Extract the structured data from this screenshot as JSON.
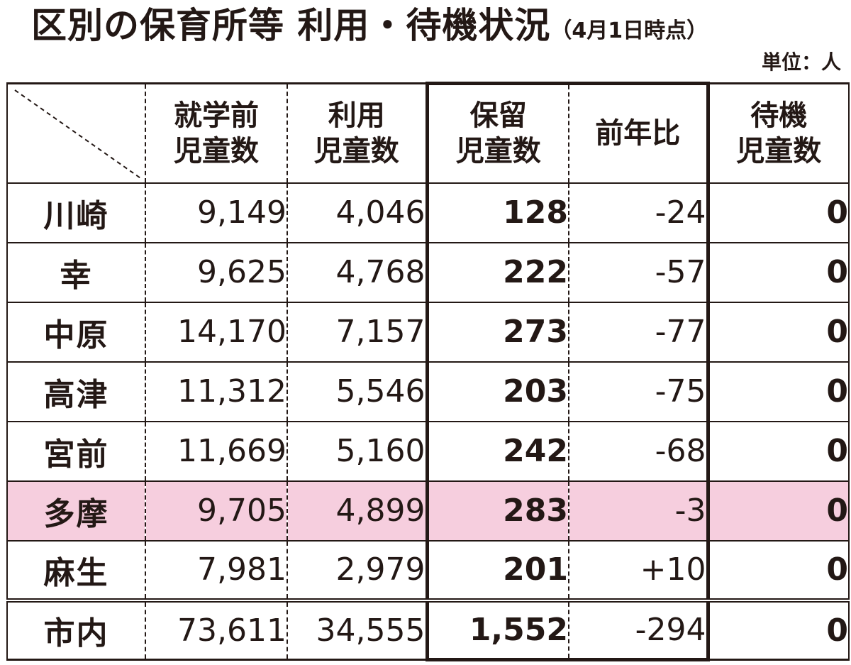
{
  "title": {
    "main": "区別の保育所等 利用・待機状況",
    "sub": "（4月1日時点）"
  },
  "unit": "単位：人",
  "headers": {
    "preschool": [
      "就学前",
      "児童数"
    ],
    "usage": [
      "利用",
      "児童数"
    ],
    "hold": [
      "保留",
      "児童数"
    ],
    "yoy": [
      "前年比"
    ],
    "waiting": [
      "待機",
      "児童数"
    ]
  },
  "rows": [
    {
      "ward": "川崎",
      "preschool": "9,149",
      "usage": "4,046",
      "hold": "128",
      "yoy": "-24",
      "waiting": "0"
    },
    {
      "ward": "幸",
      "preschool": "9,625",
      "usage": "4,768",
      "hold": "222",
      "yoy": "-57",
      "waiting": "0"
    },
    {
      "ward": "中原",
      "preschool": "14,170",
      "usage": "7,157",
      "hold": "273",
      "yoy": "-77",
      "waiting": "0"
    },
    {
      "ward": "高津",
      "preschool": "11,312",
      "usage": "5,546",
      "hold": "203",
      "yoy": "-75",
      "waiting": "0"
    },
    {
      "ward": "宮前",
      "preschool": "11,669",
      "usage": "5,160",
      "hold": "242",
      "yoy": "-68",
      "waiting": "0"
    },
    {
      "ward": "多摩",
      "preschool": "9,705",
      "usage": "4,899",
      "hold": "283",
      "yoy": "-3",
      "waiting": "0"
    },
    {
      "ward": "麻生",
      "preschool": "7,981",
      "usage": "2,979",
      "hold": "201",
      "yoy": "+10",
      "waiting": "0"
    }
  ],
  "total": {
    "ward": "市内",
    "preschool": "73,611",
    "usage": "34,555",
    "hold": "1,552",
    "yoy": "-294",
    "waiting": "0"
  },
  "colors": {
    "text": "#231815",
    "highlight_row": "#f6cede",
    "background": "#ffffff"
  }
}
